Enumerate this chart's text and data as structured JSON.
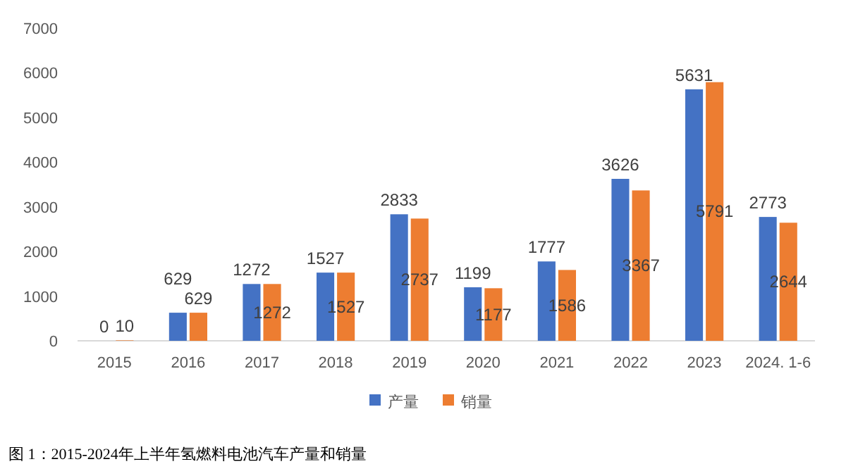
{
  "chart_data": {
    "type": "bar",
    "categories": [
      "2015",
      "2016",
      "2017",
      "2018",
      "2019",
      "2020",
      "2021",
      "2022",
      "2023",
      "2024. 1-6"
    ],
    "series": [
      {
        "name": "产量",
        "color": "#4472c4",
        "values": [
          0,
          629,
          1272,
          1527,
          2833,
          1199,
          1777,
          3626,
          5631,
          2773
        ]
      },
      {
        "name": "销量",
        "color": "#ed7d31",
        "values": [
          10,
          629,
          1272,
          1527,
          2737,
          1177,
          1586,
          3367,
          5791,
          2644
        ]
      }
    ],
    "ylim": [
      0,
      7000
    ],
    "yticks": [
      0,
      1000,
      2000,
      3000,
      4000,
      5000,
      6000,
      7000
    ],
    "grid": false,
    "legend": "bottom",
    "data_labels": true,
    "annotations": [
      "图 1：2015-2024年上半年氢燃料电池汽车产量和销量"
    ]
  }
}
